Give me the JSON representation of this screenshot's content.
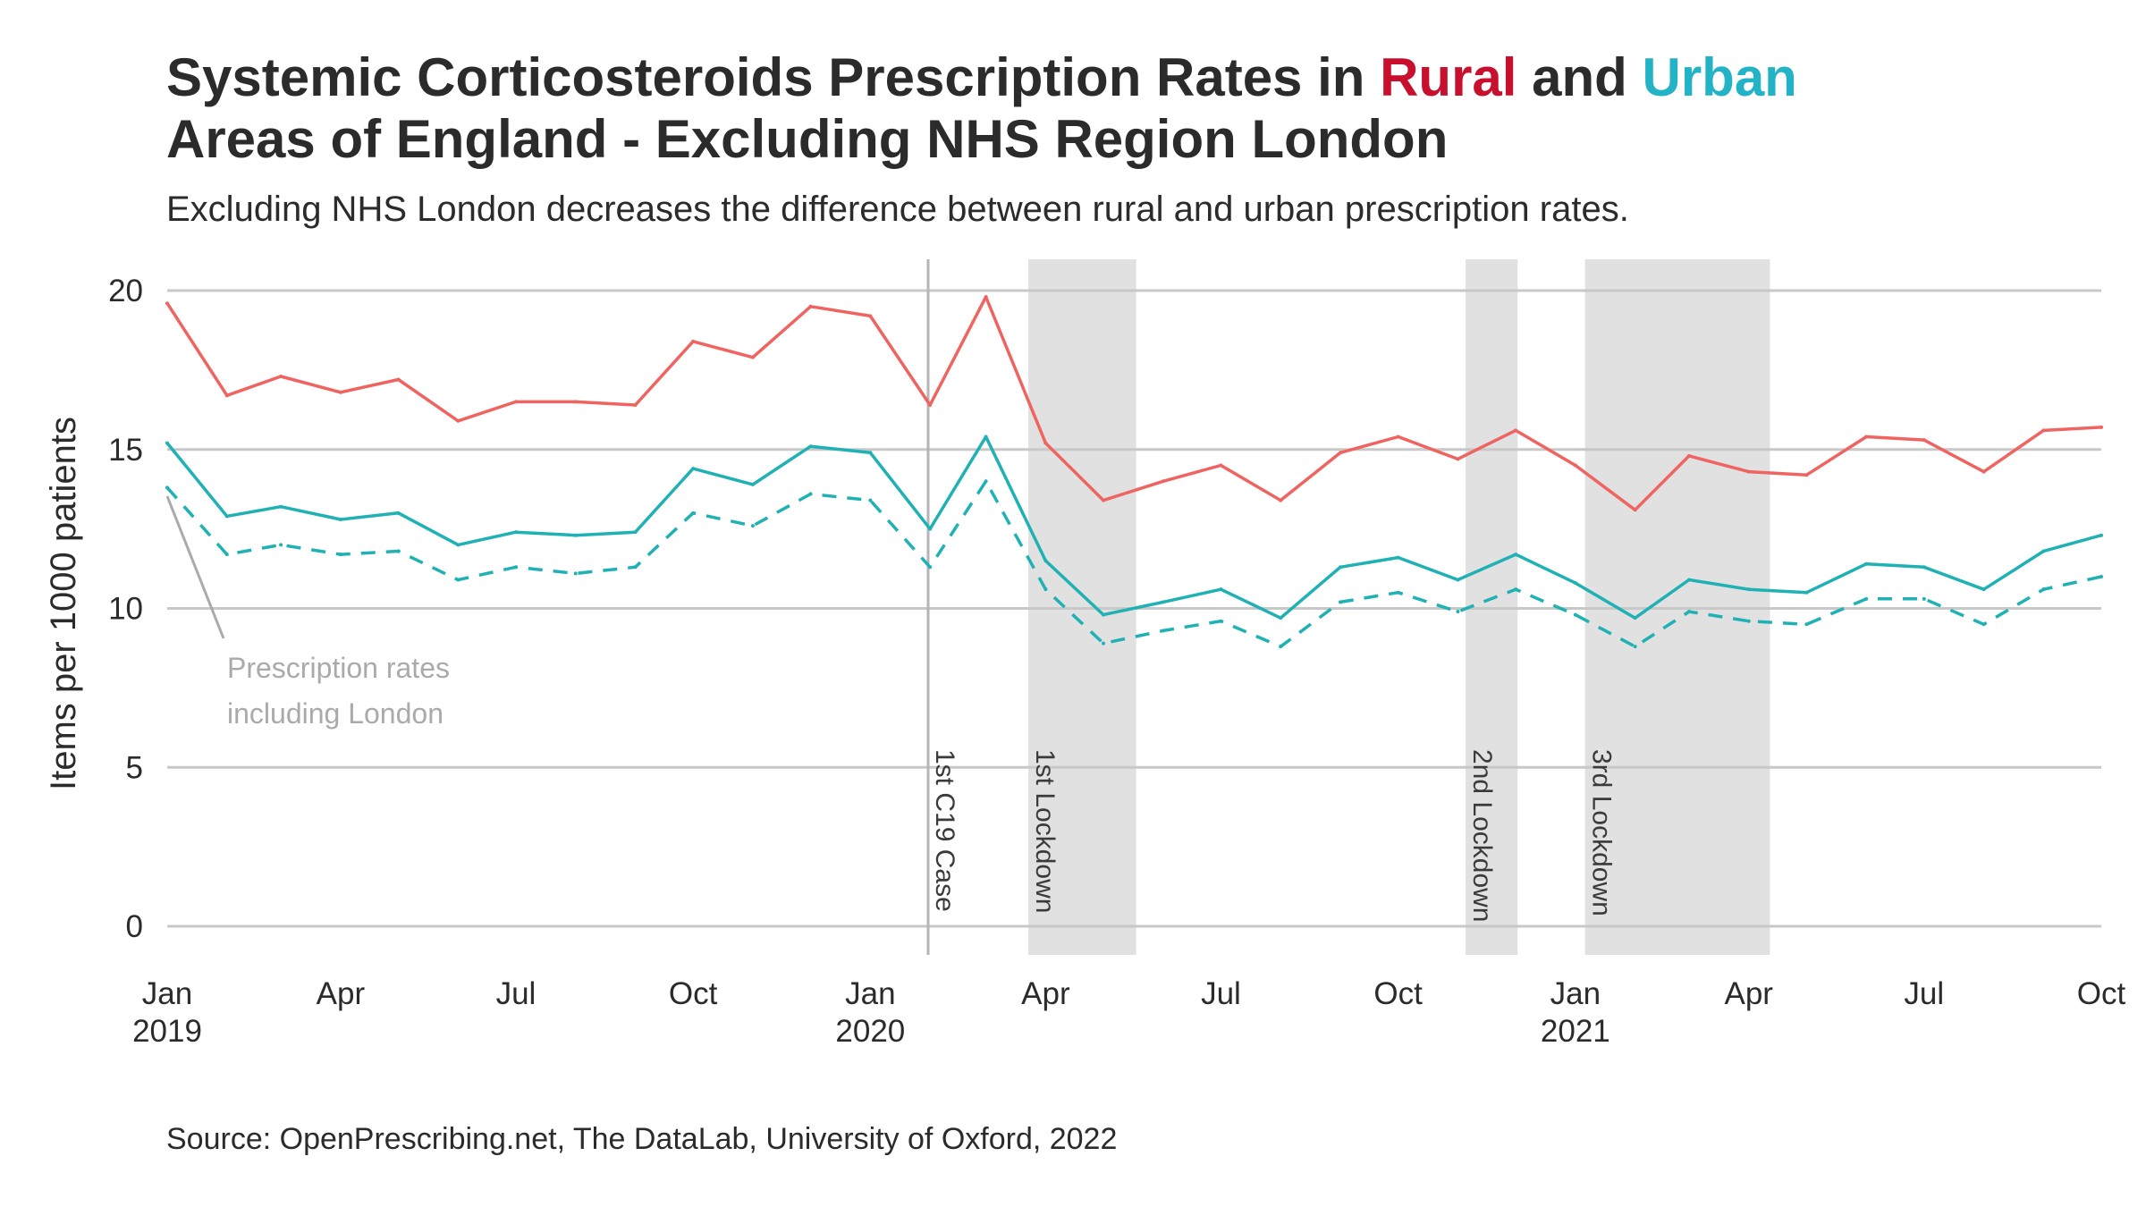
{
  "header": {
    "title_part1": "Systemic Corticosteroids Prescription Rates in ",
    "title_rural": "Rural",
    "title_and": " and ",
    "title_urban": "Urban",
    "title_part2": "Areas of England - Excluding NHS Region London",
    "subtitle": "Excluding NHS London decreases the difference between rural and urban prescription rates."
  },
  "footer": {
    "source": "Source: OpenPrescribing.net, The DataLab, University of Oxford, 2022"
  },
  "annotation": {
    "line1": "Prescription rates",
    "line2": "including London"
  },
  "colors": {
    "rural": "#ef6461",
    "urban": "#1fb1b4",
    "title_rural": "#c8102e",
    "title_urban": "#23b3c6",
    "grid": "#c8c8c8",
    "shade": "#e1e1e1",
    "annotation": "#aaaaaa"
  },
  "chart_data": {
    "type": "line",
    "ylabel": "Items per 1000 patients",
    "xlabel": "",
    "ylim": [
      0,
      20
    ],
    "yticks": [
      0,
      5,
      10,
      15,
      20
    ],
    "grid": "horizontal",
    "x_start": "2019-01",
    "x_end": "2021-10",
    "x": [
      "2019-01",
      "2019-02",
      "2019-03",
      "2019-04",
      "2019-05",
      "2019-06",
      "2019-07",
      "2019-08",
      "2019-09",
      "2019-10",
      "2019-11",
      "2019-12",
      "2020-01",
      "2020-02",
      "2020-03",
      "2020-04",
      "2020-05",
      "2020-06",
      "2020-07",
      "2020-08",
      "2020-09",
      "2020-10",
      "2020-11",
      "2020-12",
      "2021-01",
      "2021-02",
      "2021-03",
      "2021-04",
      "2021-05",
      "2021-06",
      "2021-07",
      "2021-08",
      "2021-09",
      "2021-10"
    ],
    "xticks": [
      {
        "date": "2019-01",
        "label": "Jan",
        "year": "2019"
      },
      {
        "date": "2019-04",
        "label": "Apr",
        "year": ""
      },
      {
        "date": "2019-07",
        "label": "Jul",
        "year": ""
      },
      {
        "date": "2019-10",
        "label": "Oct",
        "year": ""
      },
      {
        "date": "2020-01",
        "label": "Jan",
        "year": "2020"
      },
      {
        "date": "2020-04",
        "label": "Apr",
        "year": ""
      },
      {
        "date": "2020-07",
        "label": "Jul",
        "year": ""
      },
      {
        "date": "2020-10",
        "label": "Oct",
        "year": ""
      },
      {
        "date": "2021-01",
        "label": "Jan",
        "year": "2021"
      },
      {
        "date": "2021-04",
        "label": "Apr",
        "year": ""
      },
      {
        "date": "2021-07",
        "label": "Jul",
        "year": ""
      },
      {
        "date": "2021-10",
        "label": "Oct",
        "year": ""
      }
    ],
    "series": [
      {
        "key": "rural",
        "style": "solid",
        "values": [
          19.6,
          16.7,
          17.3,
          16.8,
          17.2,
          15.9,
          16.5,
          16.5,
          16.4,
          18.4,
          17.9,
          19.5,
          19.2,
          16.4,
          19.8,
          15.2,
          13.4,
          14.0,
          14.5,
          13.4,
          14.9,
          15.4,
          14.7,
          15.6,
          14.5,
          13.1,
          14.8,
          14.3,
          14.2,
          15.4,
          15.3,
          14.3,
          15.6,
          15.7
        ]
      },
      {
        "key": "urban",
        "style": "solid",
        "values": [
          15.2,
          12.9,
          13.2,
          12.8,
          13.0,
          12.0,
          12.4,
          12.3,
          12.4,
          14.4,
          13.9,
          15.1,
          14.9,
          12.5,
          15.4,
          11.5,
          9.8,
          10.2,
          10.6,
          9.7,
          11.3,
          11.6,
          10.9,
          11.7,
          10.8,
          9.7,
          10.9,
          10.6,
          10.5,
          11.4,
          11.3,
          10.6,
          11.8,
          12.3
        ]
      },
      {
        "key": "urban_including_london",
        "style": "dashed",
        "values": [
          13.8,
          11.7,
          12.0,
          11.7,
          11.8,
          10.9,
          11.3,
          11.1,
          11.3,
          13.0,
          12.6,
          13.6,
          13.4,
          11.3,
          14.0,
          10.6,
          8.9,
          9.3,
          9.6,
          8.8,
          10.2,
          10.5,
          9.9,
          10.6,
          9.8,
          8.8,
          9.9,
          9.6,
          9.5,
          10.3,
          10.3,
          9.5,
          10.6,
          11.0
        ]
      }
    ],
    "events": [
      {
        "type": "line",
        "date": "2020-01-31",
        "label": "1st C19 Case"
      },
      {
        "type": "band",
        "start": "2020-03-23",
        "end": "2020-05-18",
        "label": "1st Lockdown"
      },
      {
        "type": "band",
        "start": "2020-11-05",
        "end": "2020-12-02",
        "label": "2nd Lockdown"
      },
      {
        "type": "band",
        "start": "2021-01-06",
        "end": "2021-04-12",
        "label": "3rd Lockdown"
      }
    ]
  }
}
